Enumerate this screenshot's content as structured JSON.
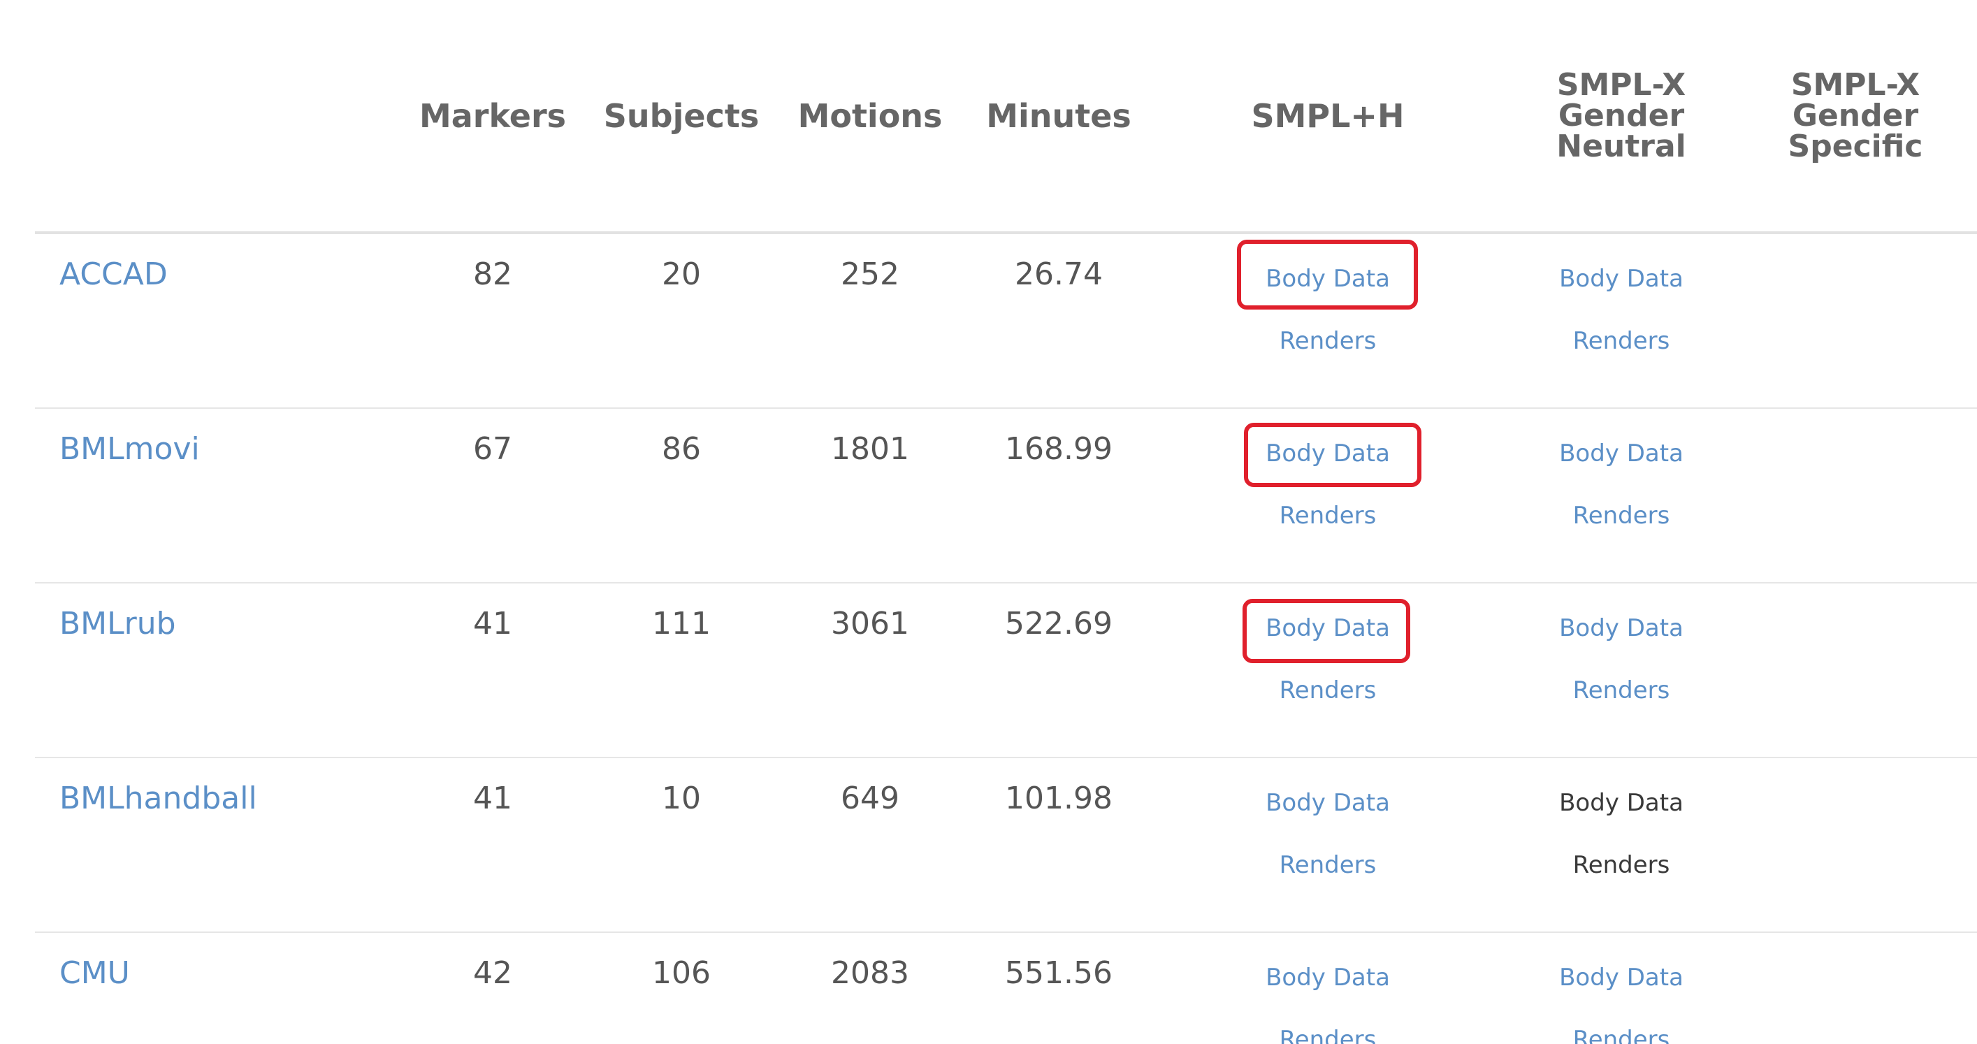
{
  "columns": {
    "markers": "Markers",
    "subjects": "Subjects",
    "motions": "Motions",
    "minutes": "Minutes",
    "smplh": "SMPL+H",
    "smplx_neutral": [
      "SMPL-X",
      "Gender",
      "Neutral"
    ],
    "smplx_specific": [
      "SMPL-X",
      "Gender",
      "Specific"
    ]
  },
  "link_labels": {
    "body_data": "Body Data",
    "renders": "Renders"
  },
  "colors": {
    "link": "#5b8fc7",
    "highlight": "#e0202c",
    "header": "#666666"
  },
  "rows": [
    {
      "name": "ACCAD",
      "markers": "82",
      "subjects": "20",
      "motions": "252",
      "minutes": "26.74",
      "smplh_body_data": "Body Data",
      "smplh_renders": "Renders",
      "smplx_body_data": "Body Data",
      "smplx_renders": "Renders",
      "smplx_linked": true,
      "smplh_highlighted": true
    },
    {
      "name": "BMLmovi",
      "markers": "67",
      "subjects": "86",
      "motions": "1801",
      "minutes": "168.99",
      "smplh_body_data": "Body Data",
      "smplh_renders": "Renders",
      "smplx_body_data": "Body Data",
      "smplx_renders": "Renders",
      "smplx_linked": true,
      "smplh_highlighted": true
    },
    {
      "name": "BMLrub",
      "markers": "41",
      "subjects": "111",
      "motions": "3061",
      "minutes": "522.69",
      "smplh_body_data": "Body Data",
      "smplh_renders": "Renders",
      "smplx_body_data": "Body Data",
      "smplx_renders": "Renders",
      "smplx_linked": true,
      "smplh_highlighted": true
    },
    {
      "name": "BMLhandball",
      "markers": "41",
      "subjects": "10",
      "motions": "649",
      "minutes": "101.98",
      "smplh_body_data": "Body Data",
      "smplh_renders": "Renders",
      "smplx_body_data": "Body Data",
      "smplx_renders": "Renders",
      "smplx_linked": false,
      "smplh_highlighted": false
    },
    {
      "name": "CMU",
      "markers": "42",
      "subjects": "106",
      "motions": "2083",
      "minutes": "551.56",
      "smplh_body_data": "Body Data",
      "smplh_renders": "Renders",
      "smplx_body_data": "Body Data",
      "smplx_renders": "Renders",
      "smplx_linked": true,
      "smplh_highlighted": false
    }
  ]
}
